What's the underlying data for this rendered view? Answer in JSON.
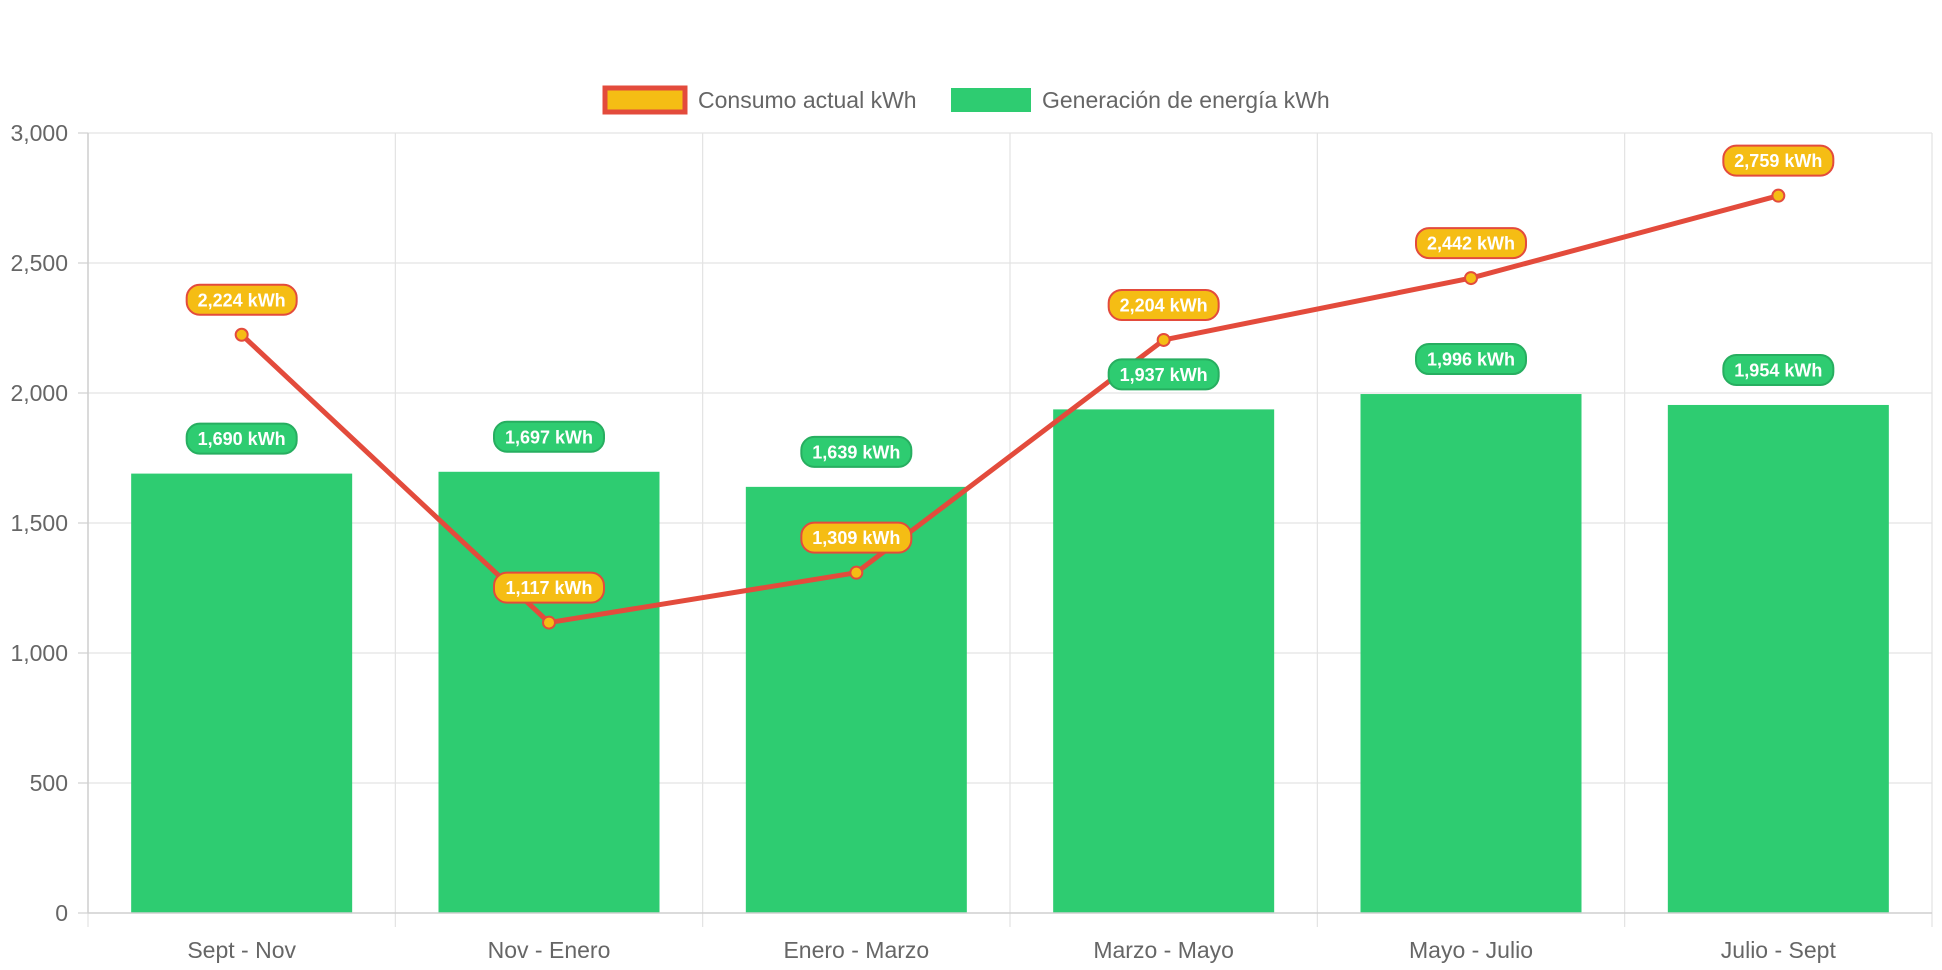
{
  "chart_data": {
    "type": "bar",
    "categories": [
      "Sept - Nov",
      "Nov - Enero",
      "Enero - Marzo",
      "Marzo - Mayo",
      "Mayo - Julio",
      "Julio - Sept"
    ],
    "series": [
      {
        "name": "Consumo actual kWh",
        "type": "line",
        "values": [
          2224,
          1117,
          1309,
          2204,
          2442,
          2759
        ],
        "labels": [
          "2,224 kWh",
          "1,117 kWh",
          "1,309 kWh",
          "2,204 kWh",
          "2,442 kWh",
          "2,759 kWh"
        ],
        "line_color": "#e34b3c",
        "point_color": "#f5bd14"
      },
      {
        "name": "Generación de energía kWh",
        "type": "bar",
        "values": [
          1690,
          1697,
          1639,
          1937,
          1996,
          1954
        ],
        "labels": [
          "1,690 kWh",
          "1,697 kWh",
          "1,639 kWh",
          "1,937 kWh",
          "1,996 kWh",
          "1,954 kWh"
        ],
        "color": "#2ecc71"
      }
    ],
    "ylim": [
      0,
      3000
    ],
    "y_ticks": [
      0,
      500,
      1000,
      1500,
      2000,
      2500,
      3000
    ],
    "y_tick_labels": [
      "0",
      "500",
      "1,000",
      "1,500",
      "2,000",
      "2,500",
      "3,000"
    ],
    "grid": true,
    "legend_position": "top"
  }
}
